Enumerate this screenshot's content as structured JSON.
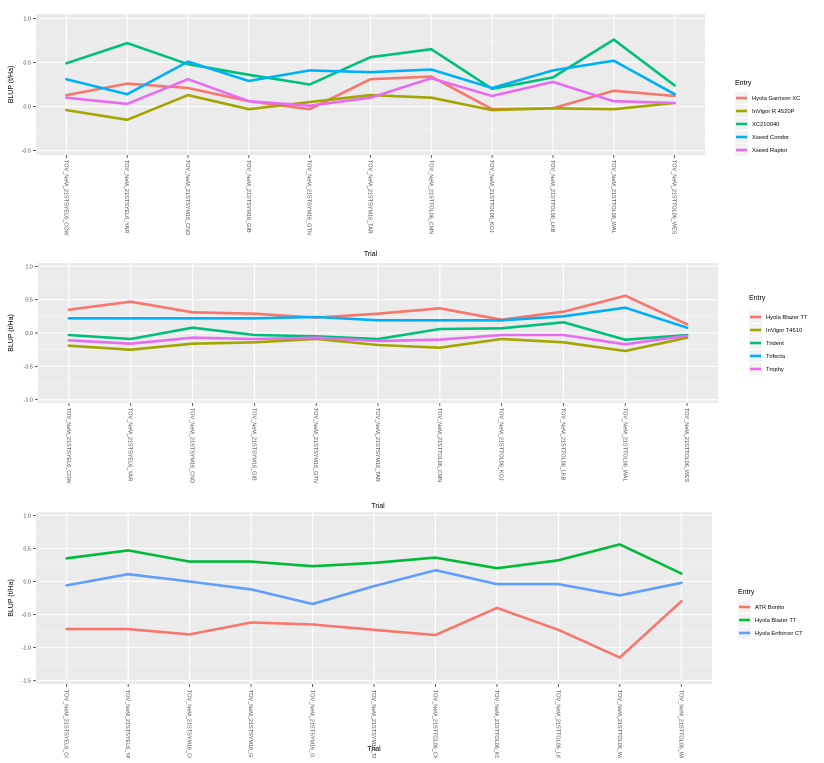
{
  "chart_data": [
    {
      "type": "line",
      "title": "",
      "xlabel": "Trial",
      "ylabel": "BLUP (t/Ha)",
      "ylim": [
        -0.55,
        1.05
      ],
      "yticks": [
        -0.5,
        0.0,
        0.5,
        1.0
      ],
      "ytick_labels": [
        "-0.5",
        "0.0",
        "0.5",
        "1.0"
      ],
      "grid": true,
      "legend_position": "right",
      "legend_title": "Entry",
      "categories": [
        "TOV_NeM_21STSYEL6_COW",
        "TOV_NeM_21STSYEL6_YAR",
        "TOV_NeM_21STSYM16_CND",
        "TOV_NeM_21STSYM16_GIB",
        "TOV_NeM_21STSYM16_GTN",
        "TOV_NeM_21STSYM16_TAR",
        "TOV_NeM_21STTOL06_CMN",
        "TOV_NeM_21STTOL06_KOJ",
        "TOV_NeM_21STTOL06_LKB",
        "TOV_NeM_21STTOL06_WAL",
        "TOV_NeM_21STTOL06_WES"
      ],
      "series": [
        {
          "name": "Hyola Garrison XC",
          "color": "#F8766D",
          "values": [
            0.13,
            0.26,
            0.21,
            0.06,
            -0.03,
            0.31,
            0.34,
            -0.03,
            -0.02,
            0.18,
            0.12
          ]
        },
        {
          "name": "InVigor R 4520P",
          "color": "#A3A500",
          "values": [
            -0.04,
            -0.15,
            0.13,
            -0.03,
            0.05,
            0.13,
            0.1,
            -0.04,
            -0.02,
            -0.03,
            0.04
          ]
        },
        {
          "name": "XC210040",
          "color": "#00BF7D",
          "values": [
            0.49,
            0.72,
            0.48,
            0.36,
            0.25,
            0.56,
            0.65,
            0.2,
            0.33,
            0.76,
            0.24
          ]
        },
        {
          "name": "Xseed Condor",
          "color": "#00B0F6",
          "values": [
            0.31,
            0.14,
            0.51,
            0.29,
            0.41,
            0.39,
            0.42,
            0.21,
            0.41,
            0.52,
            0.14
          ]
        },
        {
          "name": "Xseed Raptor",
          "color": "#E76BF3",
          "values": [
            0.1,
            0.03,
            0.31,
            0.06,
            0.01,
            0.1,
            0.32,
            0.12,
            0.28,
            0.06,
            0.04
          ]
        }
      ]
    },
    {
      "type": "line",
      "title": "",
      "xlabel": "Trial",
      "ylabel": "BLUP (t/Ha)",
      "ylim": [
        -1.05,
        1.05
      ],
      "yticks": [
        -1.0,
        -0.5,
        0.0,
        0.5,
        1.0
      ],
      "ytick_labels": [
        "-1.0",
        "-0.5",
        "0.0",
        "0.5",
        "1.0"
      ],
      "grid": true,
      "legend_position": "right",
      "legend_title": "Entry",
      "categories": [
        "TOV_NeM_21STSYEL6_COW",
        "TOV_NeM_21STSYEL6_YAR",
        "TOV_NeM_21STSYM16_CND",
        "TOV_NeM_21STSYM16_GIB",
        "TOV_NeM_21STSYM16_GTN",
        "TOV_NeM_21STSYM16_TAR",
        "TOV_NeM_21STTOL06_CMN",
        "TOV_NeM_21STTOL06_KOJ",
        "TOV_NeM_21STTOL06_LKB",
        "TOV_NeM_21STTOL06_WAL",
        "TOV_NeM_21STTOL06_WES"
      ],
      "series": [
        {
          "name": "Hyola Blazer TT",
          "color": "#F8766D",
          "values": [
            0.35,
            0.47,
            0.31,
            0.29,
            0.23,
            0.29,
            0.37,
            0.2,
            0.32,
            0.56,
            0.13
          ]
        },
        {
          "name": "InVigor T4510",
          "color": "#A3A500",
          "values": [
            -0.19,
            -0.25,
            -0.16,
            -0.14,
            -0.09,
            -0.18,
            -0.22,
            -0.09,
            -0.14,
            -0.27,
            -0.07
          ]
        },
        {
          "name": "Trident",
          "color": "#00BF7D",
          "values": [
            -0.03,
            -0.09,
            0.08,
            -0.03,
            -0.05,
            -0.09,
            0.06,
            0.07,
            0.16,
            -0.1,
            -0.03
          ]
        },
        {
          "name": "Trifecta",
          "color": "#00B0F6",
          "values": [
            0.22,
            0.22,
            0.22,
            0.22,
            0.24,
            0.19,
            0.19,
            0.19,
            0.25,
            0.38,
            0.08
          ]
        },
        {
          "name": "Trophy",
          "color": "#E76BF3",
          "values": [
            -0.11,
            -0.16,
            -0.07,
            -0.09,
            -0.07,
            -0.12,
            -0.1,
            -0.03,
            -0.03,
            -0.17,
            -0.04
          ]
        }
      ]
    },
    {
      "type": "line",
      "title": "",
      "xlabel": "Trial",
      "ylabel": "BLUP (t/Ha)",
      "ylim": [
        -1.55,
        1.05
      ],
      "yticks": [
        -1.5,
        -1.0,
        -0.5,
        0.0,
        0.5,
        1.0
      ],
      "ytick_labels": [
        "-1.5",
        "-1.0",
        "-0.5",
        "0.0",
        "0.5",
        "1.0"
      ],
      "grid": true,
      "legend_position": "right",
      "legend_title": "Entry",
      "categories": [
        "TOV_NeM_21STSYEL6_COW",
        "TOV_NeM_21STSYEL6_YAR",
        "TOV_NeM_21STSYM16_CND",
        "TOV_NeM_21STSYM16_GIB",
        "TOV_NeM_21STSYM16_GTN",
        "TOV_NeM_21STSYM16_TAR",
        "TOV_NeM_21STTOL06_CMN",
        "TOV_NeM_21STTOL06_KOJ",
        "TOV_NeM_21STTOL06_LKB",
        "TOV_NeM_21STTOL06_WAL",
        "TOV_NeM_21STTOL06_WES"
      ],
      "series": [
        {
          "name": "ATR Bonito",
          "color": "#F8766D",
          "values": [
            -0.72,
            -0.72,
            -0.8,
            -0.62,
            -0.65,
            -0.73,
            -0.81,
            -0.4,
            -0.73,
            -1.15,
            -0.3
          ]
        },
        {
          "name": "Hyola Blazer TT",
          "color": "#00BA38",
          "values": [
            0.35,
            0.47,
            0.3,
            0.3,
            0.23,
            0.28,
            0.36,
            0.2,
            0.32,
            0.56,
            0.12
          ]
        },
        {
          "name": "Hyola Enforcer CT",
          "color": "#619CFF",
          "values": [
            -0.06,
            0.11,
            0.0,
            -0.12,
            -0.34,
            -0.07,
            0.17,
            -0.04,
            -0.04,
            -0.21,
            -0.02
          ]
        }
      ]
    }
  ]
}
